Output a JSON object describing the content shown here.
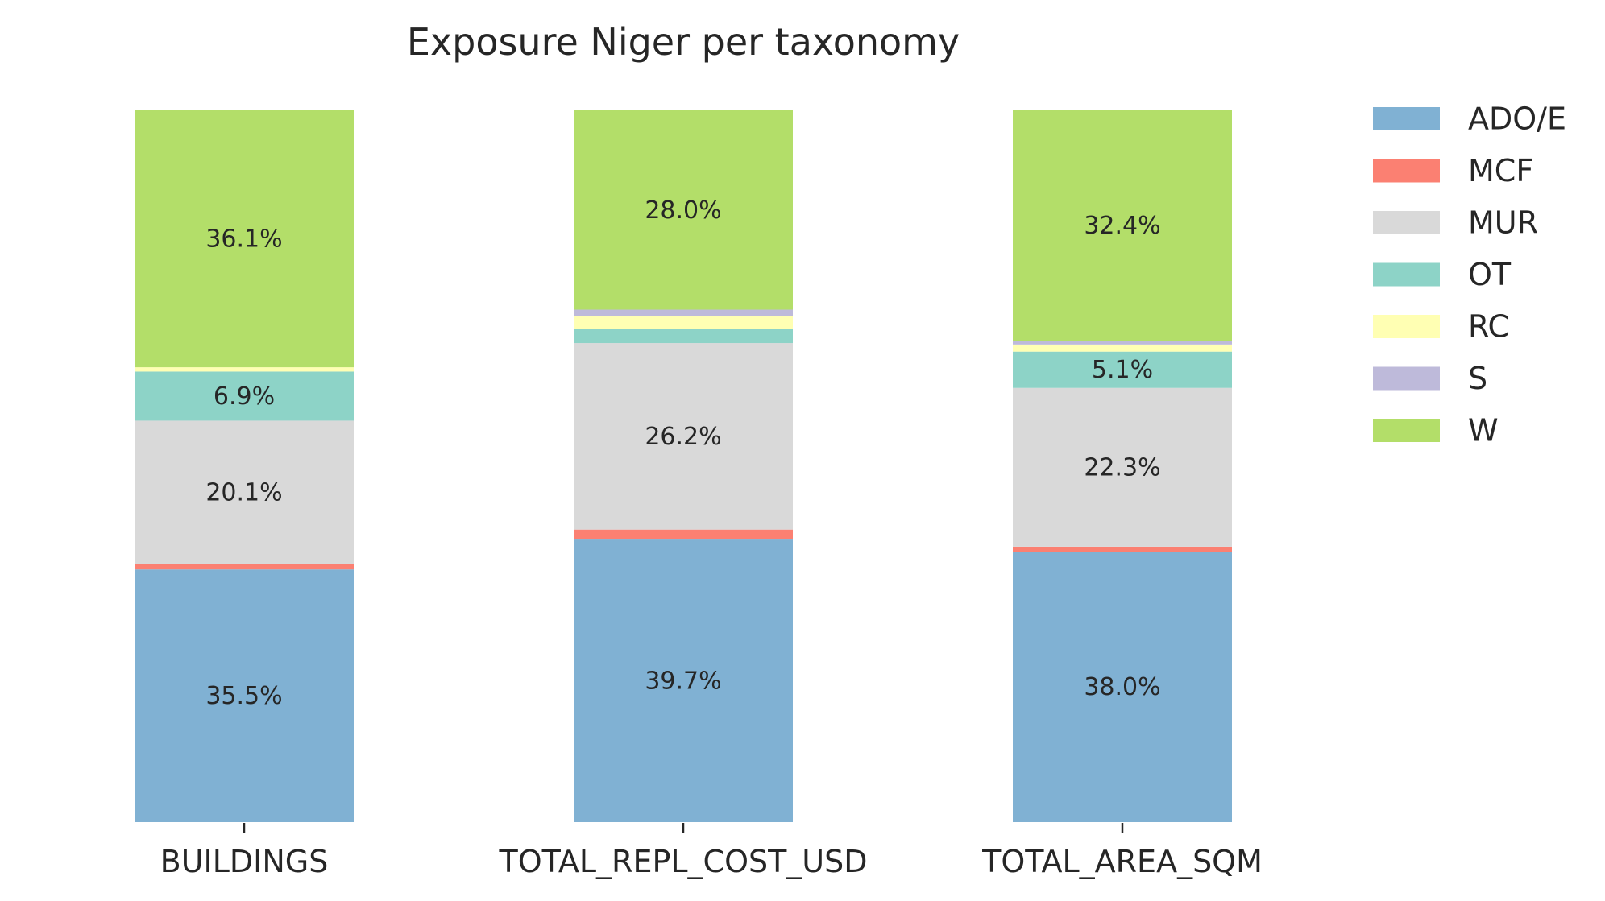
{
  "chart_data": {
    "type": "bar",
    "stacked": true,
    "title": "Exposure Niger per taxonomy",
    "xlabel": "",
    "ylabel": "",
    "ylim": [
      0,
      100
    ],
    "grid": false,
    "legend_position": "top-right",
    "categories": [
      "BUILDINGS",
      "TOTAL_REPL_COST_USD",
      "TOTAL_AREA_SQM"
    ],
    "series": [
      {
        "name": "ADO/E",
        "color": "#80b1d3",
        "values": [
          35.5,
          39.7,
          38.0
        ],
        "labels": [
          "35.5%",
          "39.7%",
          "38.0%"
        ]
      },
      {
        "name": "MCF",
        "color": "#fb8072",
        "values": [
          0.8,
          1.4,
          0.7
        ],
        "labels": [
          "",
          "",
          ""
        ]
      },
      {
        "name": "MUR",
        "color": "#d9d9d9",
        "values": [
          20.1,
          26.2,
          22.3
        ],
        "labels": [
          "20.1%",
          "26.2%",
          "22.3%"
        ]
      },
      {
        "name": "OT",
        "color": "#8dd3c7",
        "values": [
          6.9,
          2.0,
          5.1
        ],
        "labels": [
          "6.9%",
          "",
          "5.1%"
        ]
      },
      {
        "name": "RC",
        "color": "#ffffb3",
        "values": [
          0.6,
          1.8,
          1.0
        ],
        "labels": [
          "",
          "",
          ""
        ]
      },
      {
        "name": "S",
        "color": "#bebada",
        "values": [
          0.0,
          0.9,
          0.5
        ],
        "labels": [
          "",
          "",
          ""
        ]
      },
      {
        "name": "W",
        "color": "#b3de69",
        "values": [
          36.1,
          28.0,
          32.4
        ],
        "labels": [
          "36.1%",
          "28.0%",
          "32.4%"
        ]
      }
    ]
  }
}
